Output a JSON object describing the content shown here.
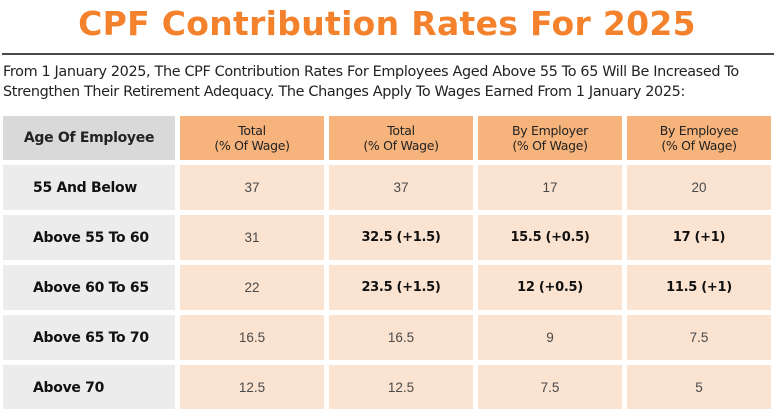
{
  "title": "CPF Contribution Rates For 2025",
  "intro": {
    "line1": "From 1 January 2025, The CPF Contribution Rates For Employees Aged Above 55 To 65 Will Be Increased To",
    "line2": "Strengthen Their Retirement Adequacy. The Changes Apply To Wages Earned From 1 January 2025:"
  },
  "table": {
    "headers": {
      "age": "Age Of Employee",
      "col1": {
        "l1": "Total",
        "l2": "(% Of Wage)"
      },
      "col2": {
        "l1": "Total",
        "l2": "(% Of Wage)"
      },
      "col3": {
        "l1": "By Employer",
        "l2": "(% Of Wage)"
      },
      "col4": {
        "l1": "By Employee",
        "l2": "(% Of Wage)"
      }
    },
    "rows": [
      {
        "age": "55 And Below",
        "c1": "37",
        "c2": "37",
        "c3": "17",
        "c4": "20"
      },
      {
        "age": "Above 55 To 60",
        "c1": "31",
        "c2": "32.5 (+1.5)",
        "c3": "15.5 (+0.5)",
        "c4": "17 (+1)"
      },
      {
        "age": "Above 60 To 65",
        "c1": "22",
        "c2": "23.5 (+1.5)",
        "c3": "12 (+0.5)",
        "c4": "11.5 (+1)"
      },
      {
        "age": "Above 65 To 70",
        "c1": "16.5",
        "c2": "16.5",
        "c3": "9",
        "c4": "7.5"
      },
      {
        "age": "Above 70",
        "c1": "12.5",
        "c2": "12.5",
        "c3": "7.5",
        "c4": "5"
      }
    ]
  },
  "colors": {
    "title": "#f4812b",
    "header_age_bg": "#d9d9d9",
    "header_bg": "#f6b47c",
    "age_bg": "#ececec",
    "value_bg": "#fbe3d1"
  }
}
